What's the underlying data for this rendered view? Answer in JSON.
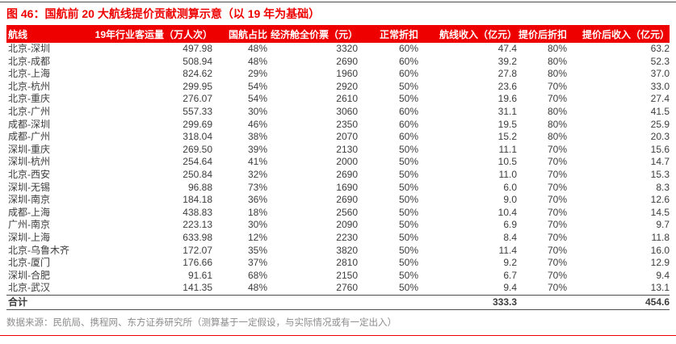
{
  "title": "图 46：国航前 20 大航线提价贡献测算示意（以 19 年为基础）",
  "source_note": "数据来源：民航局、携程网、东方证券研究所（测算基于一定假设，与实际情况或有一定出入）",
  "colors": {
    "accent_red": "#ee0000",
    "header_text": "#ffffff",
    "body_text": "#3d3d3d",
    "source_text": "#8c8c8c",
    "rule_dark": "#4d4d4d"
  },
  "table": {
    "headers": [
      "航线",
      "19年行业客运量（万人次）",
      "国航占比",
      "经济舱全价票（元）",
      "正常折扣",
      "航线收入（亿元）",
      "提价后折扣",
      "提价后收入（亿元）"
    ],
    "rows": [
      [
        "北京-深圳",
        "497.98",
        "48%",
        "3320",
        "60%",
        "47.4",
        "80%",
        "63.2"
      ],
      [
        "北京-成都",
        "508.94",
        "48%",
        "2690",
        "60%",
        "39.2",
        "80%",
        "52.3"
      ],
      [
        "北京-上海",
        "824.62",
        "29%",
        "1960",
        "60%",
        "27.8",
        "80%",
        "37.0"
      ],
      [
        "北京-杭州",
        "299.95",
        "54%",
        "2920",
        "50%",
        "23.6",
        "70%",
        "33.0"
      ],
      [
        "北京-重庆",
        "276.07",
        "54%",
        "2610",
        "50%",
        "19.6",
        "70%",
        "27.4"
      ],
      [
        "北京-广州",
        "557.33",
        "30%",
        "3060",
        "60%",
        "31.1",
        "80%",
        "41.5"
      ],
      [
        "成都-深圳",
        "299.69",
        "46%",
        "2350",
        "60%",
        "19.5",
        "80%",
        "25.9"
      ],
      [
        "成都-广州",
        "318.04",
        "38%",
        "2070",
        "60%",
        "15.2",
        "80%",
        "20.3"
      ],
      [
        "深圳-重庆",
        "269.50",
        "39%",
        "2130",
        "50%",
        "11.1",
        "70%",
        "15.6"
      ],
      [
        "深圳-杭州",
        "254.64",
        "41%",
        "2000",
        "50%",
        "10.5",
        "70%",
        "14.7"
      ],
      [
        "北京-西安",
        "250.84",
        "32%",
        "2690",
        "50%",
        "11.0",
        "70%",
        "15.3"
      ],
      [
        "深圳-无锡",
        "96.88",
        "73%",
        "1690",
        "50%",
        "6.0",
        "70%",
        "8.3"
      ],
      [
        "深圳-南京",
        "184.18",
        "36%",
        "2690",
        "50%",
        "9.0",
        "70%",
        "12.6"
      ],
      [
        "成都-上海",
        "438.83",
        "18%",
        "2560",
        "50%",
        "10.4",
        "70%",
        "14.5"
      ],
      [
        "广州-南京",
        "223.13",
        "30%",
        "2090",
        "50%",
        "6.9",
        "70%",
        "9.7"
      ],
      [
        "深圳-上海",
        "633.98",
        "12%",
        "2230",
        "50%",
        "8.4",
        "70%",
        "11.8"
      ],
      [
        "北京-乌鲁木齐",
        "172.07",
        "35%",
        "3820",
        "50%",
        "11.4",
        "70%",
        "16.0"
      ],
      [
        "北京-厦门",
        "176.66",
        "37%",
        "2810",
        "50%",
        "9.2",
        "70%",
        "12.9"
      ],
      [
        "深圳-合肥",
        "91.61",
        "68%",
        "2150",
        "50%",
        "6.7",
        "70%",
        "9.4"
      ],
      [
        "北京-武汉",
        "141.35",
        "48%",
        "2760",
        "50%",
        "9.4",
        "70%",
        "13.1"
      ]
    ],
    "total": {
      "label": "合计",
      "route_revenue": "333.3",
      "post_hike_revenue": "454.6"
    }
  }
}
